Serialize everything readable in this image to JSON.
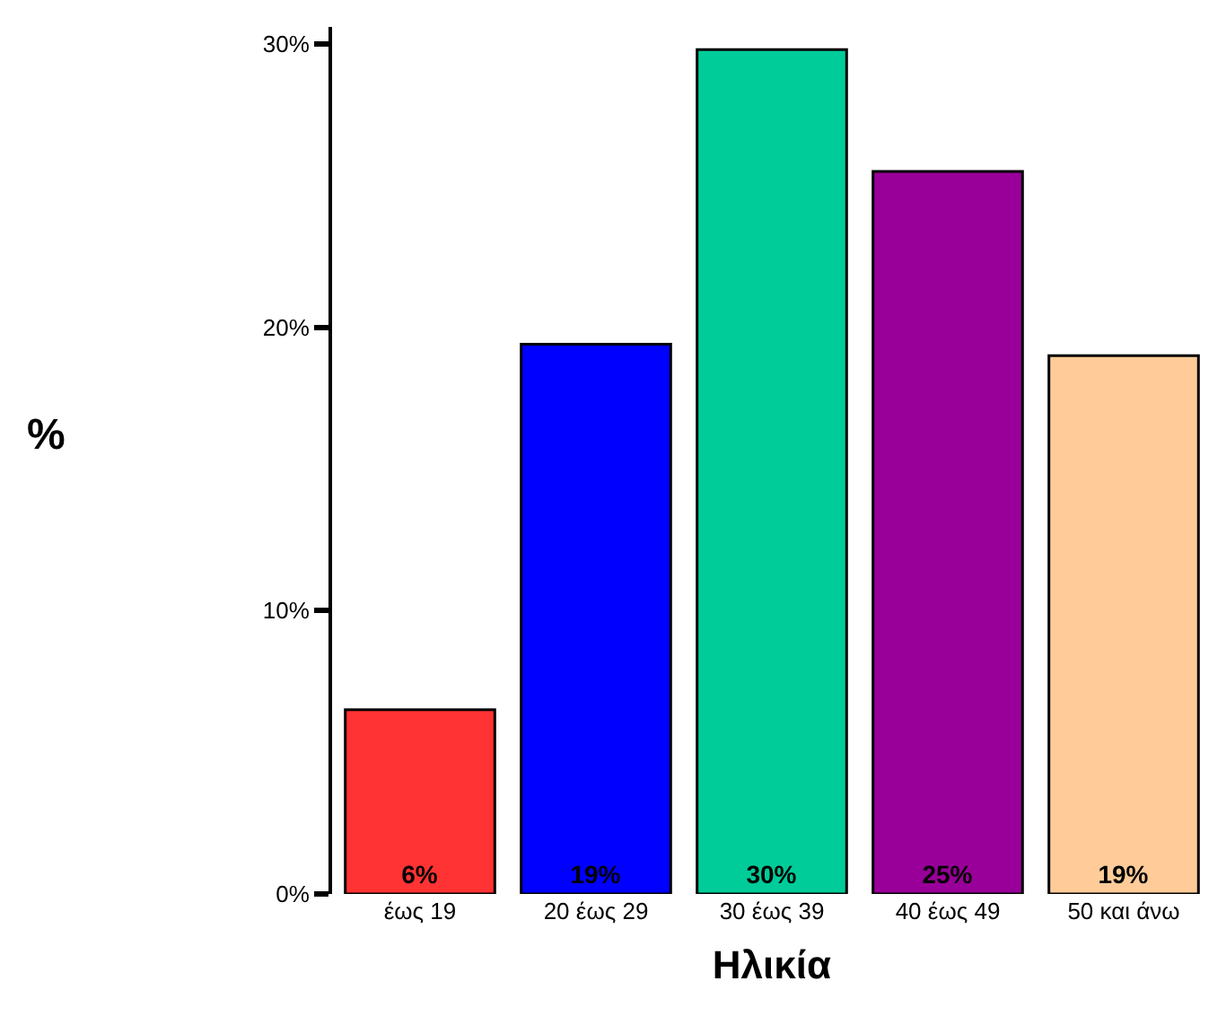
{
  "chart_data": {
    "type": "bar",
    "xlabel": "Ηλικία",
    "ylabel": "%",
    "categories": [
      "έως 19",
      "20 έως 29",
      "30 έως 39",
      "40 έως 49",
      "50 και άνω"
    ],
    "values": [
      6.5,
      19.4,
      29.8,
      25.5,
      19.0
    ],
    "colors": [
      "#ff3333",
      "#0000ff",
      "#00cc99",
      "#990099",
      "#ffcc99"
    ],
    "value_labels": [
      "6%",
      "19%",
      "30%",
      "25%",
      "19%"
    ],
    "ylim": [
      0,
      30.6
    ],
    "yticks": [
      {
        "value": 0,
        "label": "0%"
      },
      {
        "value": 10,
        "label": "10%"
      },
      {
        "value": 20,
        "label": "20%"
      },
      {
        "value": 30,
        "label": "30%"
      }
    ],
    "legend": false
  }
}
